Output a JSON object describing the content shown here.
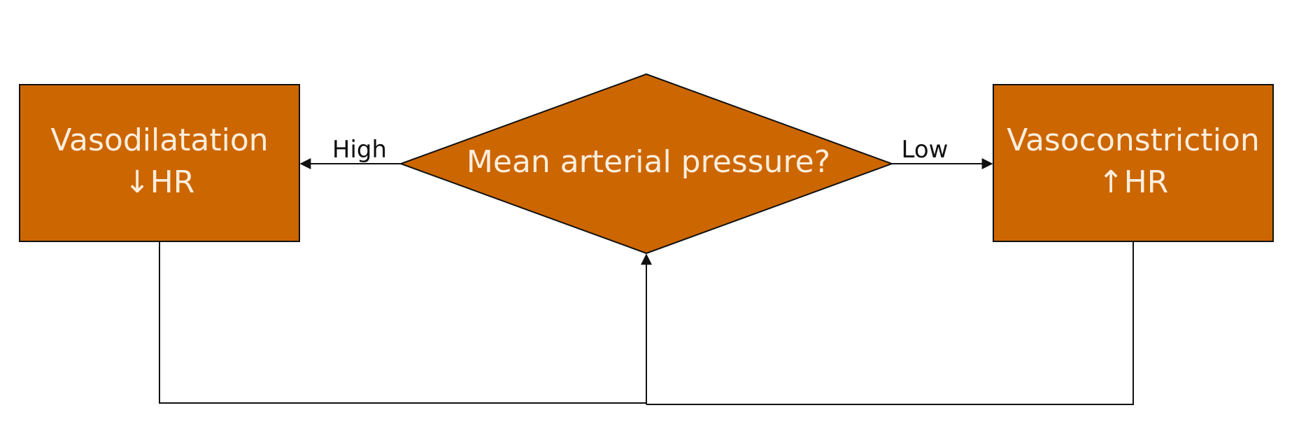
{
  "colors": {
    "node_fill": "#cc6600",
    "node_text": "#fbeedd",
    "line": "#111111",
    "background": "#ffffff"
  },
  "decision": {
    "label": "Mean arterial pressure?"
  },
  "left_node": {
    "line1": "Vasodilatation",
    "line2": "↓HR"
  },
  "right_node": {
    "line1": "Vasoconstriction",
    "line2": "↑HR"
  },
  "edges": {
    "high_label": "High",
    "low_label": "Low"
  }
}
